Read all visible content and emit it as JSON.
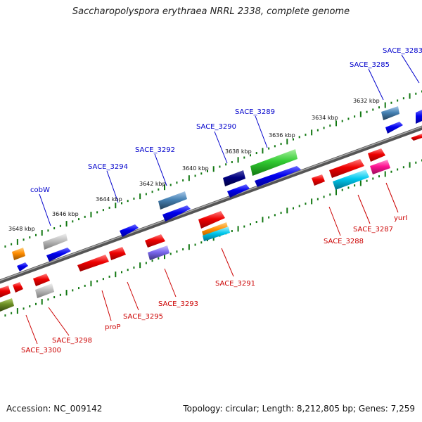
{
  "title": "Saccharopolyspora erythraea NRRL 2338, complete genome",
  "accession": "Accession: NC_009142",
  "stats": "Topology: circular; Length: 8,212,805 bp; Genes: 7,259",
  "ticks": [
    "3632 kbp",
    "3634 kbp",
    "3636 kbp",
    "3638 kbp",
    "3640 kbp",
    "3642 kbp",
    "3644 kbp",
    "3646 kbp",
    "3648 kbp"
  ],
  "genes_above": [
    "SACE_3283",
    "SACE_3285",
    "SACE_3289",
    "SACE_3290",
    "SACE_3292",
    "SACE_3294",
    "cobW"
  ],
  "genes_below": [
    "yurI",
    "SACE_3287",
    "SACE_3288",
    "SACE_3291",
    "SACE_3293",
    "SACE_3295",
    "proP",
    "SACE_3298",
    "SACE_3300"
  ],
  "colors": {
    "above_labels": "#0000cc",
    "below_labels": "#cc0000"
  }
}
